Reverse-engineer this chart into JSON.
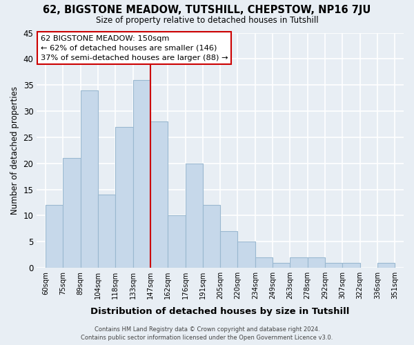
{
  "title": "62, BIGSTONE MEADOW, TUTSHILL, CHEPSTOW, NP16 7JU",
  "subtitle": "Size of property relative to detached houses in Tutshill",
  "xlabel": "Distribution of detached houses by size in Tutshill",
  "ylabel": "Number of detached properties",
  "bar_color": "#c6d8ea",
  "bar_edge_color": "#9ab8d0",
  "categories": [
    "60sqm",
    "75sqm",
    "89sqm",
    "104sqm",
    "118sqm",
    "133sqm",
    "147sqm",
    "162sqm",
    "176sqm",
    "191sqm",
    "205sqm",
    "220sqm",
    "234sqm",
    "249sqm",
    "263sqm",
    "278sqm",
    "292sqm",
    "307sqm",
    "322sqm",
    "336sqm",
    "351sqm"
  ],
  "values": [
    12,
    21,
    34,
    14,
    27,
    36,
    28,
    10,
    20,
    12,
    7,
    5,
    2,
    1,
    2,
    2,
    1,
    1,
    0,
    1
  ],
  "ylim": [
    0,
    45
  ],
  "yticks": [
    0,
    5,
    10,
    15,
    20,
    25,
    30,
    35,
    40,
    45
  ],
  "vline_position": 6,
  "vline_color": "#cc0000",
  "annotation_title": "62 BIGSTONE MEADOW: 150sqm",
  "annotation_line1": "← 62% of detached houses are smaller (146)",
  "annotation_line2": "37% of semi-detached houses are larger (88) →",
  "annotation_box_color": "#ffffff",
  "annotation_box_edge": "#cc0000",
  "footer1": "Contains HM Land Registry data © Crown copyright and database right 2024.",
  "footer2": "Contains public sector information licensed under the Open Government Licence v3.0.",
  "background_color": "#e8eef4",
  "grid_color": "#ffffff"
}
